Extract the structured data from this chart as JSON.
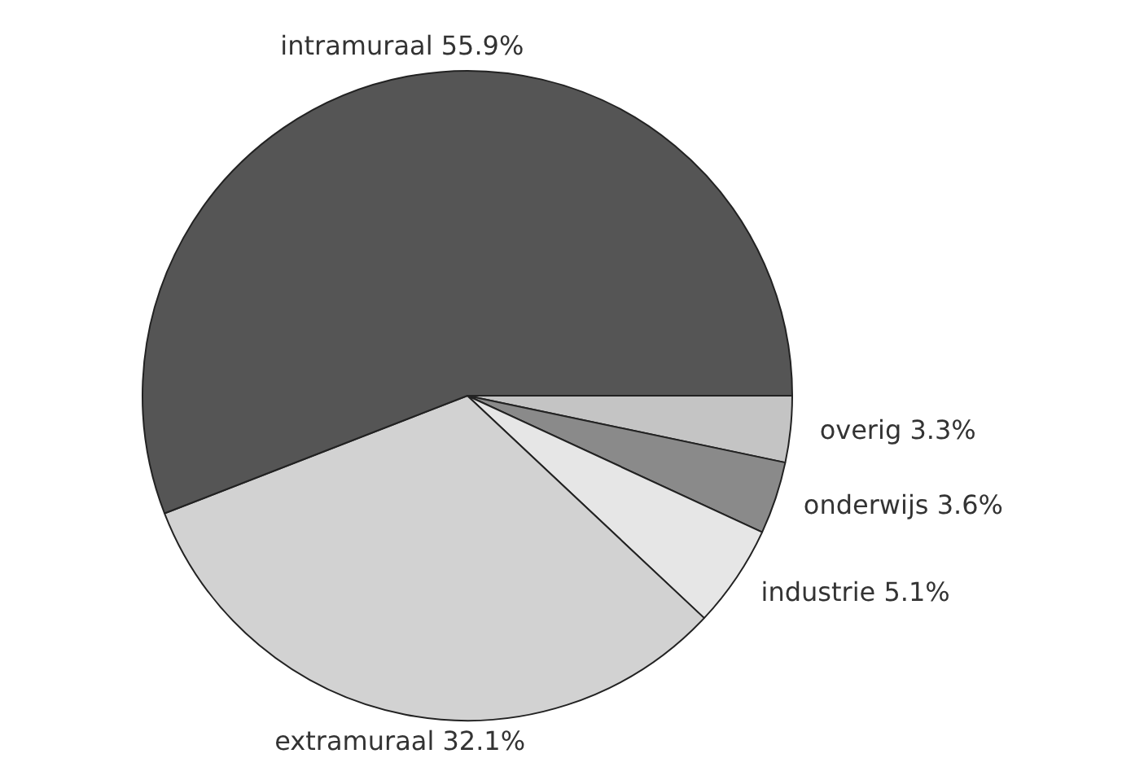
{
  "chart_data": {
    "type": "pie",
    "categories": [
      "overig",
      "onderwijs",
      "industrie",
      "extramuraal",
      "intramuraal"
    ],
    "values": [
      3.3,
      3.6,
      5.1,
      32.1,
      55.9
    ],
    "value_labels": [
      "3.3%",
      "3.6%",
      "5.1%",
      "32.1%",
      "55.9%"
    ],
    "colors": [
      "#c4c4c4",
      "#8a8a8a",
      "#e6e6e6",
      "#d2d2d2",
      "#555555"
    ],
    "legend": false
  }
}
